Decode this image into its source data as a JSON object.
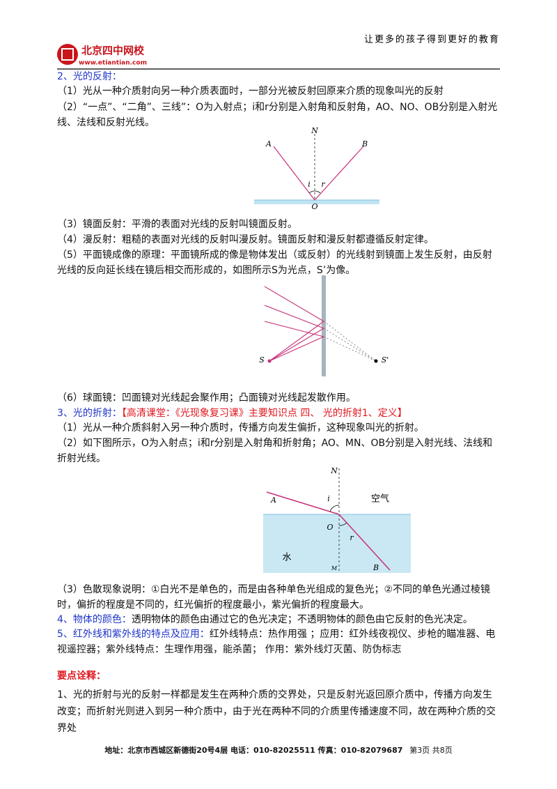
{
  "header": {
    "logo_name": "北京四中网校",
    "logo_url": "www.etiantian.com",
    "slogan": "让更多的孩子得到更好的教育"
  },
  "reflection": {
    "heading": "2、光的反射：",
    "items": [
      "（1）光从一种介质射向另一种介质表面时，一部分光被反射回原来介质的现象叫光的反射",
      "（2）“一点”、“二角”、三线”：O为入射点；i和r分别是入射角和反射角，AO、NO、OB分别是入射光线、法线和反射光线。",
      "（3）镜面反射：平滑的表面对光线的反射叫镜面反射。",
      "（4）漫反射：粗糙的表面对光线的反射叫漫反射。镜面反射和漫反射都遵循反射定律。",
      "（5）平面镜成像的原理：平面镜所成的像是物体发出（或反射）的光线射到镜面上发生反射，由反射光线的反向延长线在镜后相交而形成的，如图所示S为光点，S’为像。",
      "（6）球面镜：凹面镜对光线起会聚作用；凸面镜对光线起发散作用。"
    ],
    "figure1_labels": [
      "N",
      "A",
      "B",
      "i",
      "r",
      "O"
    ],
    "figure2_labels": [
      "S",
      "S'"
    ]
  },
  "refraction": {
    "heading": "3、光的折射：",
    "reference": "【高清课堂：《光现象复习课》主要知识点 四、 光的折射1、定义】",
    "items": [
      "（1）光从一种介质斜射入另一种介质时，传播方向发生偏折，这种现象叫光的折射。",
      "（2）如下图所示，O为入射点；i和r分别是入射角和折射角；AO、MN、OB分别是入射光线、法线和折射光线。",
      "（3）色散现象说明：①白光不是单色的，而是由各种单色光组成的复色光；②不同的单色光通过棱镜时，偏折的程度是不同的，红光偏折的程度最小，紫光偏折的程度最大。"
    ],
    "figure_labels": [
      "N",
      "A",
      "i",
      "空气",
      "O",
      "r",
      "水",
      "M",
      "B"
    ]
  },
  "color": {
    "heading": "4、物体的颜色：",
    "text": "透明物体的颜色由通过它的色光决定；不透明物体的颜色由它反射的色光决定。"
  },
  "infrared": {
    "heading": "5、红外线和紫外线的特点及应用：",
    "text": "红外线特点：热作用强 ；应用：红外线夜视仪、步枪的瞄准器、电视遥控器；紫外线特点：生理作用强，能杀菌； 作用：紫外线灯灭菌、防伪标志"
  },
  "notes": {
    "heading": "要点诠释：",
    "text": "1、光的折射与光的反射一样都是发生在两种介质的交界处，只是反射光返回原介质中，传播方向发生改变；而折射光则进入到另一种介质中，由于光在两种不同的介质里传播速度不同，故在两种介质的交界处"
  },
  "footer": {
    "address": "地址：北京市西城区新德街20号4层 电话：010-82025511 传真：010-82079687",
    "page": "第3页 共8页"
  }
}
